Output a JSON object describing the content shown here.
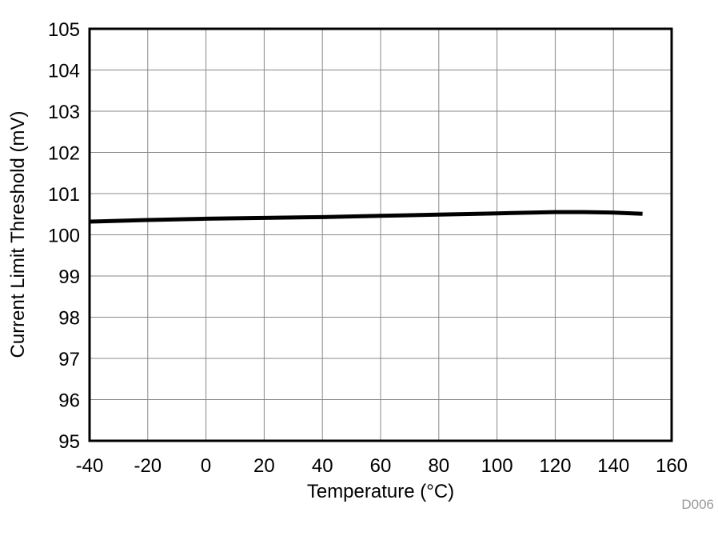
{
  "chart_data": {
    "type": "line",
    "title": "",
    "xlabel": "Temperature (°C)",
    "ylabel": "Current Limit Threshold (mV)",
    "xlim": [
      -40,
      160
    ],
    "ylim": [
      95,
      105
    ],
    "xticks": [
      -40,
      -20,
      0,
      20,
      40,
      60,
      80,
      100,
      120,
      140,
      160
    ],
    "yticks": [
      95,
      96,
      97,
      98,
      99,
      100,
      101,
      102,
      103,
      104,
      105
    ],
    "grid": true,
    "series": [
      {
        "x": [
          -40,
          -20,
          0,
          20,
          40,
          60,
          80,
          100,
          120,
          130,
          140,
          150
        ],
        "y": [
          100.32,
          100.36,
          100.39,
          100.41,
          100.43,
          100.46,
          100.49,
          100.52,
          100.55,
          100.55,
          100.54,
          100.51
        ],
        "color": "#000000"
      }
    ],
    "annotation": "D006"
  }
}
